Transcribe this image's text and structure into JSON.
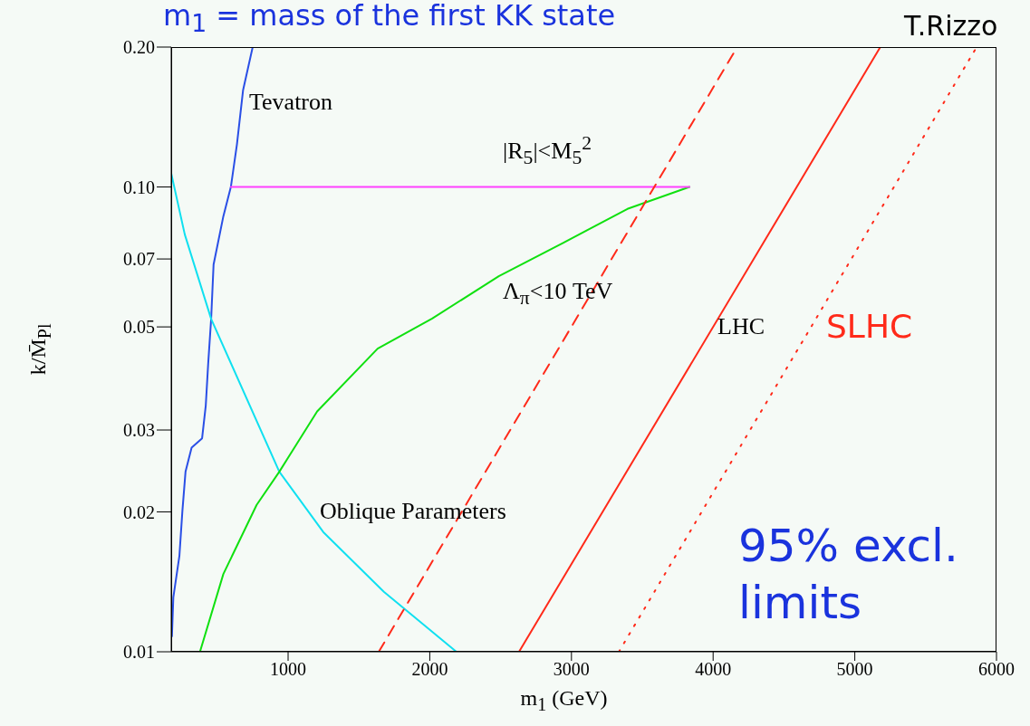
{
  "chart_data": {
    "type": "line",
    "title": "m$_{1}$ = mass of the first KK state",
    "xlabel": "m$_{1}$ (GeV)",
    "ylabel": "k/M̄$_{Pl}$",
    "xlim": [
      175,
      6000
    ],
    "xticks": [
      1000,
      2000,
      3000,
      4000,
      5000,
      6000
    ],
    "ylim": [
      0.01,
      0.2
    ],
    "yticks": [
      0.01,
      0.02,
      0.03,
      0.05,
      0.07,
      {
        "value": 0.1,
        "label": "0.10"
      },
      {
        "value": 0.2,
        "label": "0.20"
      }
    ],
    "log": true,
    "marker": "none",
    "series": [
      {
        "name": "Tevatron",
        "color": "#2a4fe6",
        "line_style": "solid",
        "x": [
          180,
          190,
          233,
          254,
          276,
          319,
          393,
          419,
          436,
          457,
          474,
          543,
          596,
          639,
          682,
          750
        ],
        "values": [
          0.0108,
          0.0131,
          0.0161,
          0.0201,
          0.0244,
          0.0275,
          0.0288,
          0.0339,
          0.0417,
          0.0521,
          0.0681,
          0.0865,
          0.1,
          0.1236,
          0.1614,
          0.2
        ]
      },
      {
        "name": "Oblique Parameters",
        "color": "#10e0f0",
        "line_style": "solid",
        "x": [
          175,
          271,
          457,
          938,
          1248,
          1676,
          2188
        ],
        "values": [
          0.107,
          0.079,
          0.052,
          0.0244,
          0.0181,
          0.01346,
          0.01
        ]
      },
      {
        "name": "Λ$_{π}$<10 TeV",
        "color": "#10e010",
        "line_style": "solid",
        "x": [
          378,
          543,
          778,
          938,
          1205,
          1632,
          2017,
          2487,
          2941,
          3395,
          3833
        ],
        "values": [
          0.01,
          0.0147,
          0.0207,
          0.0244,
          0.0329,
          0.0449,
          0.0521,
          0.0643,
          0.0758,
          0.0897,
          0.1
        ]
      },
      {
        "name": "|R$_{5}$|<M$_{5}$$^{2}$",
        "color": "#ff40ff",
        "line_style": "solid",
        "x": [
          596,
          3833
        ],
        "values": [
          0.1,
          0.1
        ]
      },
      {
        "color": "#ff2a1a",
        "line_style": "dashed",
        "x": [
          1640,
          4170
        ],
        "values": [
          0.01,
          0.2
        ]
      },
      {
        "name": "LHC",
        "color": "#ff2a1a",
        "line_style": "solid",
        "x": [
          2630,
          5180
        ],
        "values": [
          0.01,
          0.2
        ]
      },
      {
        "name": "SLHC",
        "color": "#ff2a1a",
        "line_style": "dotted",
        "x": [
          3335,
          5860
        ],
        "values": [
          0.01,
          0.2
        ]
      }
    ],
    "annotations": [
      "95% excl. limits",
      "T.Rizzo"
    ]
  }
}
